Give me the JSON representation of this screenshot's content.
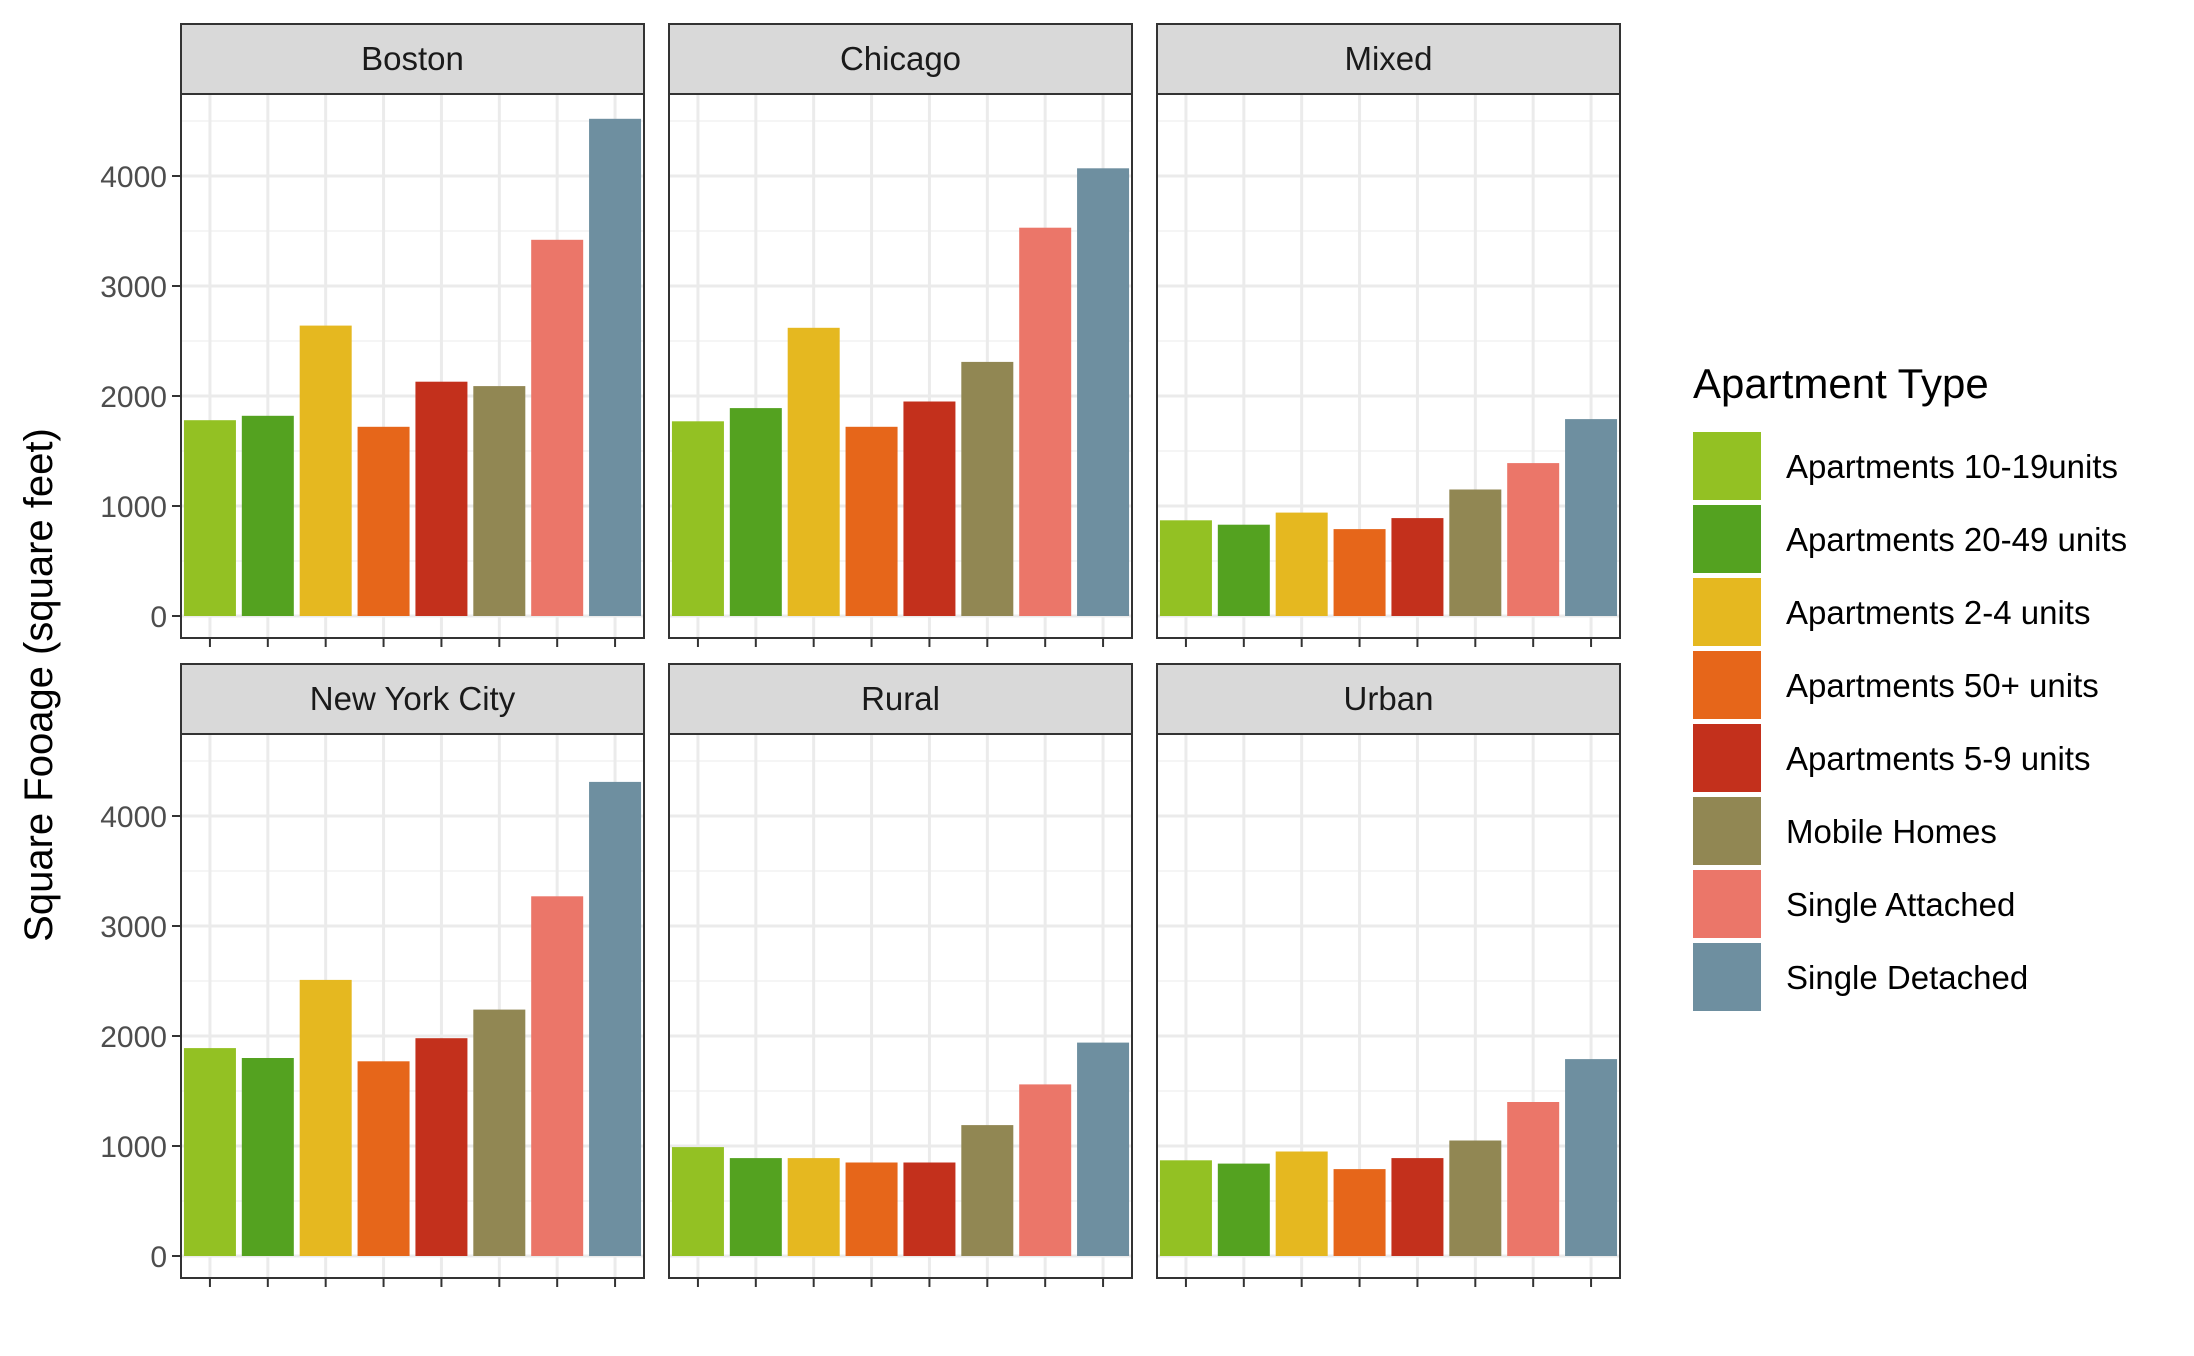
{
  "chart_data": {
    "type": "bar",
    "ylabel": "Square Fooage (square feet)",
    "ylim": [
      0,
      4800
    ],
    "y_ticks": [
      0,
      1000,
      2000,
      3000,
      4000
    ],
    "grid": true,
    "legend": {
      "title": "Apartment Type",
      "placement": "right"
    },
    "categories": [
      "Apartments 10-19units",
      "Apartments 20-49 units",
      "Apartments 2-4 units",
      "Apartments 50+ units",
      "Apartments 5-9 units",
      "Mobile Homes",
      "Single Attached",
      "Single Detached"
    ],
    "colors": [
      "#93c123",
      "#54a220",
      "#e5b820",
      "#e6661a",
      "#c3301c",
      "#918753",
      "#eb7669",
      "#6e8fa0"
    ],
    "panels": [
      {
        "name": "Boston",
        "values": [
          1780,
          1820,
          2640,
          1720,
          2130,
          2090,
          3420,
          4520
        ]
      },
      {
        "name": "Chicago",
        "values": [
          1770,
          1890,
          2620,
          1720,
          1950,
          2310,
          3530,
          4070
        ]
      },
      {
        "name": "Mixed",
        "values": [
          870,
          830,
          940,
          790,
          890,
          1150,
          1390,
          1790
        ]
      },
      {
        "name": "New York City",
        "values": [
          1890,
          1800,
          2510,
          1770,
          1980,
          2240,
          3270,
          4310
        ]
      },
      {
        "name": "Rural",
        "values": [
          990,
          890,
          890,
          850,
          850,
          1190,
          1560,
          1940
        ]
      },
      {
        "name": "Urban",
        "values": [
          870,
          840,
          950,
          790,
          890,
          1050,
          1400,
          1790
        ]
      }
    ]
  }
}
